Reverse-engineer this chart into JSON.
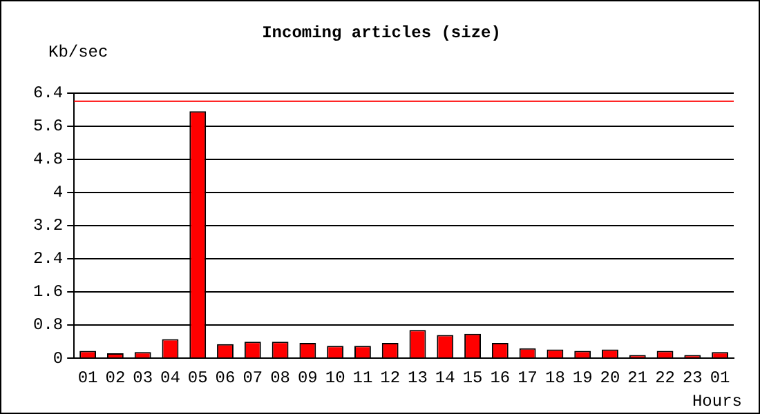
{
  "chart_data": {
    "type": "bar",
    "title": "Incoming articles (size)",
    "xlabel": "Hours",
    "ylabel": "Kb/sec",
    "categories": [
      "01",
      "02",
      "03",
      "04",
      "05",
      "06",
      "07",
      "08",
      "09",
      "10",
      "11",
      "12",
      "13",
      "14",
      "15",
      "16",
      "17",
      "18",
      "19",
      "20",
      "21",
      "22",
      "23",
      "01"
    ],
    "series": [
      {
        "color": "#ff0000",
        "values": [
          0.18,
          0.12,
          0.15,
          0.46,
          5.96,
          0.34,
          0.4,
          0.4,
          0.37,
          0.3,
          0.3,
          0.37,
          0.68,
          0.56,
          0.59,
          0.37,
          0.24,
          0.21,
          0.18,
          0.21,
          0.08,
          0.18,
          0.08,
          0.15
        ]
      }
    ],
    "ylim": [
      0,
      6.4
    ],
    "yticks": [
      0,
      0.8,
      1.6,
      2.4,
      3.2,
      4,
      4.8,
      5.6,
      6.4
    ],
    "grid": "y",
    "legend": false,
    "ref_lines": [
      {
        "axis": "y",
        "value": 6.2,
        "color": "#ff0000"
      }
    ]
  }
}
